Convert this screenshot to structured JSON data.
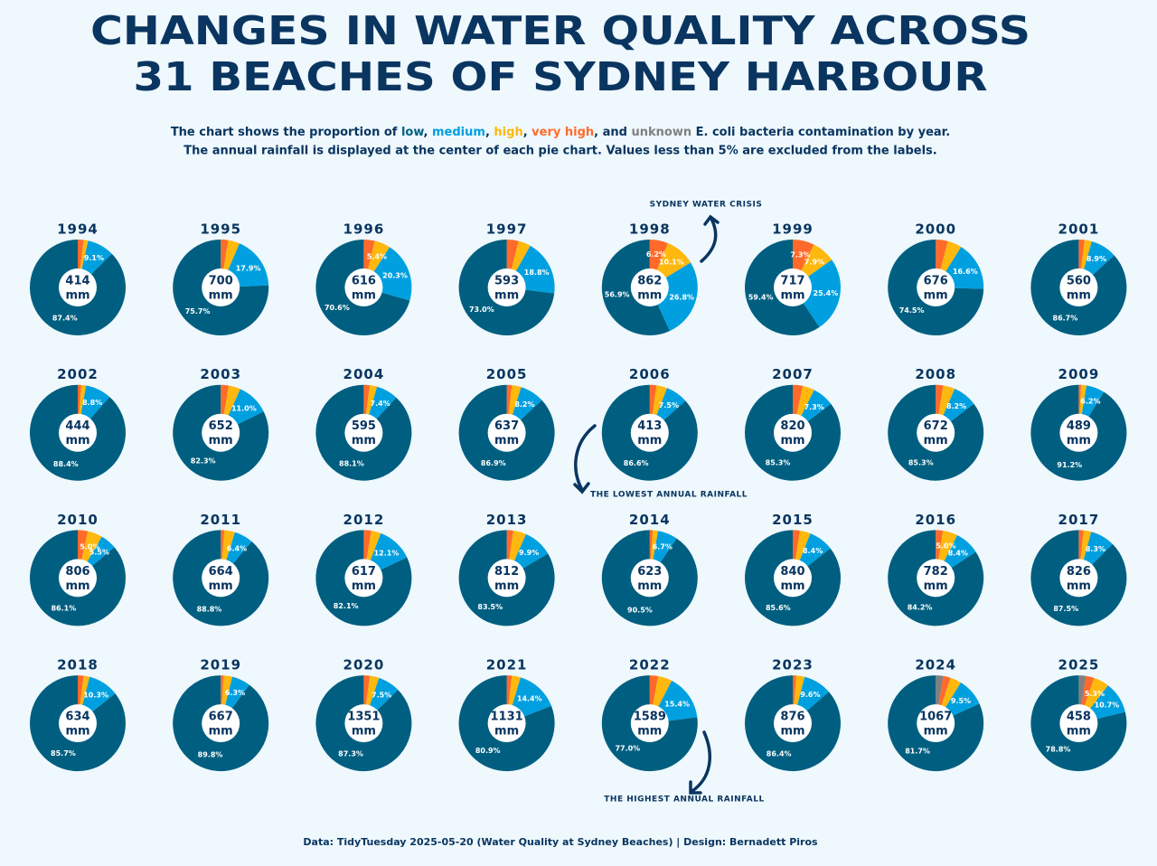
{
  "title_lines": [
    "CHANGES IN WATER QUALITY ACROSS",
    "31 BEACHES OF SYDNEY HARBOUR"
  ],
  "legend": [
    {
      "name": "low",
      "color": "#005f80"
    },
    {
      "name": "medium",
      "color": "#00a0e0"
    },
    {
      "name": "high",
      "color": "#ffb80d"
    },
    {
      "name": "very high",
      "color": "#ff6a2a"
    },
    {
      "name": "unknown",
      "color": "#808080"
    }
  ],
  "subtitle_line1": [
    "The chart shows the proportion of ",
    ", ",
    ", ",
    ", ",
    ", and ",
    " E. coli bacteria contamination by year."
  ],
  "subtitle_line2": "The annual rainfall is displayed at the center of each pie chart. Values less than 5% are excluded from the labels.",
  "annotations": [
    "SYDNEY WATER CRISIS",
    "THE LOWEST ANNUAL RAINFALL",
    "THE HIGHEST ANNUAL RAINFALL"
  ],
  "footer": "Data: TidyTuesday 2025-05-20 (Water Quality at Sydney Beaches) | Design: Bernadett Piros",
  "rainfall_unit": "mm",
  "chart_data": [
    {
      "type": "pie",
      "title": "1994",
      "rainfall": 414,
      "values": [
        87.4,
        9.1,
        1.5,
        2.0,
        0
      ],
      "value_labels": [
        "87.4%",
        "9.1%",
        null,
        null,
        null
      ]
    },
    {
      "type": "pie",
      "title": "1995",
      "rainfall": 700,
      "values": [
        75.7,
        17.9,
        3.9,
        2.5,
        0
      ],
      "value_labels": [
        "75.7%",
        "17.9%",
        null,
        null,
        null
      ]
    },
    {
      "type": "pie",
      "title": "1996",
      "rainfall": 616,
      "values": [
        70.6,
        20.3,
        5.4,
        3.7,
        0
      ],
      "value_labels": [
        "70.6%",
        "20.3%",
        "5.4%",
        null,
        null
      ]
    },
    {
      "type": "pie",
      "title": "1997",
      "rainfall": 593,
      "values": [
        73.0,
        18.8,
        4.2,
        4.0,
        0
      ],
      "value_labels": [
        "73.0%",
        "18.8%",
        null,
        null,
        null
      ]
    },
    {
      "type": "pie",
      "title": "1998",
      "rainfall": 862,
      "values": [
        56.9,
        26.8,
        10.1,
        6.2,
        0
      ],
      "value_labels": [
        "56.9%",
        "26.8%",
        "10.1%",
        "6.2%",
        null
      ]
    },
    {
      "type": "pie",
      "title": "1999",
      "rainfall": 717,
      "values": [
        59.4,
        25.4,
        7.9,
        7.3,
        0
      ],
      "value_labels": [
        "59.4%",
        "25.4%",
        "7.9%",
        "7.3%",
        null
      ]
    },
    {
      "type": "pie",
      "title": "2000",
      "rainfall": 676,
      "values": [
        74.5,
        16.6,
        4.8,
        4.1,
        0
      ],
      "value_labels": [
        "74.5%",
        "16.6%",
        null,
        null,
        null
      ]
    },
    {
      "type": "pie",
      "title": "2001",
      "rainfall": 560,
      "values": [
        86.7,
        8.9,
        2.4,
        2.0,
        0
      ],
      "value_labels": [
        "86.7%",
        "8.9%",
        null,
        null,
        null
      ]
    },
    {
      "type": "pie",
      "title": "2002",
      "rainfall": 444,
      "values": [
        88.4,
        8.8,
        1.6,
        1.2,
        0
      ],
      "value_labels": [
        "88.4%",
        "8.8%",
        null,
        null,
        null
      ]
    },
    {
      "type": "pie",
      "title": "2003",
      "rainfall": 652,
      "values": [
        82.3,
        11.0,
        4.0,
        2.7,
        0
      ],
      "value_labels": [
        "82.3%",
        "11.0%",
        null,
        null,
        null
      ]
    },
    {
      "type": "pie",
      "title": "2004",
      "rainfall": 595,
      "values": [
        88.1,
        7.4,
        2.5,
        2.0,
        0
      ],
      "value_labels": [
        "88.1%",
        "7.4%",
        null,
        null,
        null
      ]
    },
    {
      "type": "pie",
      "title": "2005",
      "rainfall": 637,
      "values": [
        86.9,
        8.2,
        3.2,
        1.7,
        0
      ],
      "value_labels": [
        "86.9%",
        "8.2%",
        null,
        null,
        null
      ]
    },
    {
      "type": "pie",
      "title": "2006",
      "rainfall": 413,
      "values": [
        86.6,
        7.5,
        3.6,
        2.3,
        0
      ],
      "value_labels": [
        "86.6%",
        "7.5%",
        null,
        null,
        null
      ]
    },
    {
      "type": "pie",
      "title": "2007",
      "rainfall": 820,
      "values": [
        85.3,
        7.3,
        4.0,
        3.4,
        0
      ],
      "value_labels": [
        "85.3%",
        "7.3%",
        null,
        null,
        null
      ]
    },
    {
      "type": "pie",
      "title": "2008",
      "rainfall": 672,
      "values": [
        85.3,
        8.2,
        4.0,
        2.5,
        0
      ],
      "value_labels": [
        "85.3%",
        "8.2%",
        null,
        null,
        null
      ]
    },
    {
      "type": "pie",
      "title": "2009",
      "rainfall": 489,
      "values": [
        91.2,
        6.2,
        1.8,
        0.8,
        0
      ],
      "value_labels": [
        "91.2%",
        "6.2%",
        null,
        null,
        null
      ]
    },
    {
      "type": "pie",
      "title": "2010",
      "rainfall": 806,
      "values": [
        86.1,
        5.5,
        5.0,
        3.4,
        0
      ],
      "value_labels": [
        "86.1%",
        "5.5%",
        "5.0%",
        null,
        null
      ]
    },
    {
      "type": "pie",
      "title": "2011",
      "rainfall": 664,
      "values": [
        88.8,
        6.4,
        3.6,
        1.2,
        0
      ],
      "value_labels": [
        "88.8%",
        "6.4%",
        null,
        null,
        null
      ]
    },
    {
      "type": "pie",
      "title": "2012",
      "rainfall": 617,
      "values": [
        82.1,
        12.1,
        3.3,
        2.5,
        0
      ],
      "value_labels": [
        "82.1%",
        "12.1%",
        null,
        null,
        null
      ]
    },
    {
      "type": "pie",
      "title": "2013",
      "rainfall": 812,
      "values": [
        83.5,
        9.9,
        4.4,
        2.2,
        0
      ],
      "value_labels": [
        "83.5%",
        "9.9%",
        null,
        null,
        null
      ]
    },
    {
      "type": "pie",
      "title": "2014",
      "rainfall": 623,
      "values": [
        90.5,
        6.7,
        1.8,
        1.0,
        0
      ],
      "value_labels": [
        "90.5%",
        "6.7%",
        null,
        null,
        null
      ]
    },
    {
      "type": "pie",
      "title": "2015",
      "rainfall": 840,
      "values": [
        85.6,
        8.4,
        3.6,
        2.4,
        0
      ],
      "value_labels": [
        "85.6%",
        "8.4%",
        null,
        null,
        null
      ]
    },
    {
      "type": "pie",
      "title": "2016",
      "rainfall": 782,
      "values": [
        84.2,
        8.4,
        5.0,
        2.4,
        0
      ],
      "value_labels": [
        "84.2%",
        "8.4%",
        "5.0%",
        null,
        null
      ]
    },
    {
      "type": "pie",
      "title": "2017",
      "rainfall": 826,
      "values": [
        87.5,
        8.3,
        2.6,
        1.6,
        0
      ],
      "value_labels": [
        "87.5%",
        "8.3%",
        null,
        null,
        null
      ]
    },
    {
      "type": "pie",
      "title": "2018",
      "rainfall": 634,
      "values": [
        85.7,
        10.3,
        2.0,
        2.0,
        0
      ],
      "value_labels": [
        "85.7%",
        "10.3%",
        null,
        null,
        null
      ]
    },
    {
      "type": "pie",
      "title": "2019",
      "rainfall": 667,
      "values": [
        89.8,
        6.3,
        2.9,
        1.0,
        0
      ],
      "value_labels": [
        "89.8%",
        "6.3%",
        null,
        null,
        null
      ]
    },
    {
      "type": "pie",
      "title": "2020",
      "rainfall": 1351,
      "values": [
        87.3,
        7.5,
        3.2,
        2.0,
        0
      ],
      "value_labels": [
        "87.3%",
        "7.5%",
        null,
        null,
        null
      ]
    },
    {
      "type": "pie",
      "title": "2021",
      "rainfall": 1131,
      "values": [
        80.9,
        14.4,
        3.0,
        1.7,
        0
      ],
      "value_labels": [
        "80.9%",
        "14.4%",
        null,
        null,
        null
      ]
    },
    {
      "type": "pie",
      "title": "2022",
      "rainfall": 1589,
      "values": [
        77.0,
        15.4,
        4.8,
        2.8,
        0
      ],
      "value_labels": [
        "77.0%",
        "15.4%",
        null,
        null,
        null
      ]
    },
    {
      "type": "pie",
      "title": "2023",
      "rainfall": 876,
      "values": [
        86.4,
        9.6,
        2.8,
        1.2,
        0
      ],
      "value_labels": [
        "86.4%",
        "9.6%",
        null,
        null,
        null
      ]
    },
    {
      "type": "pie",
      "title": "2024",
      "rainfall": 1067,
      "values": [
        81.7,
        9.5,
        3.8,
        2.5,
        2.5
      ],
      "value_labels": [
        "81.7%",
        "9.5%",
        null,
        null,
        null
      ]
    },
    {
      "type": "pie",
      "title": "2025",
      "rainfall": 458,
      "values": [
        78.8,
        10.7,
        5.3,
        2.8,
        2.4
      ],
      "value_labels": [
        "78.8%",
        "10.7%",
        "5.3%",
        null,
        null
      ]
    }
  ]
}
